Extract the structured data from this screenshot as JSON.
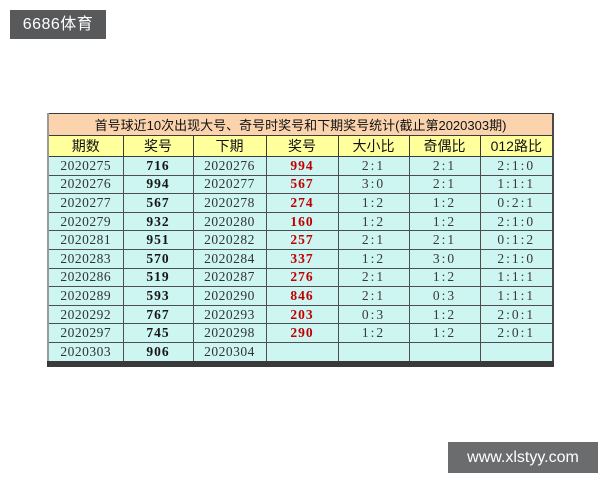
{
  "top_badge": {
    "text": "6686体育",
    "bg": "#58595b",
    "color": "#ffffff"
  },
  "watermark": {
    "text": "www.xlstyy.com",
    "bg": "#6b6c6e",
    "color": "#ffffff"
  },
  "table": {
    "title": "首号球近10次出现大号、奇号时奖号和下期奖号统计(截止第2020303期)",
    "title_bg": "#fbd4ae",
    "header_bg": "#ffff9c",
    "row_bg": "#cdf5f1",
    "highlight_color": "#c00000",
    "columns": [
      "期数",
      "奖号",
      "下期",
      "奖号",
      "大小比",
      "奇偶比",
      "012路比"
    ],
    "rows": [
      {
        "period": "2020275",
        "number": "716",
        "next_period": "2020276",
        "next_number": "994",
        "big_small": "2:1",
        "odd_even": "2:1",
        "route_012": "2:1:0"
      },
      {
        "period": "2020276",
        "number": "994",
        "next_period": "2020277",
        "next_number": "567",
        "big_small": "3:0",
        "odd_even": "2:1",
        "route_012": "1:1:1"
      },
      {
        "period": "2020277",
        "number": "567",
        "next_period": "2020278",
        "next_number": "274",
        "big_small": "1:2",
        "odd_even": "1:2",
        "route_012": "0:2:1"
      },
      {
        "period": "2020279",
        "number": "932",
        "next_period": "2020280",
        "next_number": "160",
        "big_small": "1:2",
        "odd_even": "1:2",
        "route_012": "2:1:0"
      },
      {
        "period": "2020281",
        "number": "951",
        "next_period": "2020282",
        "next_number": "257",
        "big_small": "2:1",
        "odd_even": "2:1",
        "route_012": "0:1:2"
      },
      {
        "period": "2020283",
        "number": "570",
        "next_period": "2020284",
        "next_number": "337",
        "big_small": "1:2",
        "odd_even": "3:0",
        "route_012": "2:1:0"
      },
      {
        "period": "2020286",
        "number": "519",
        "next_period": "2020287",
        "next_number": "276",
        "big_small": "2:1",
        "odd_even": "1:2",
        "route_012": "1:1:1"
      },
      {
        "period": "2020289",
        "number": "593",
        "next_period": "2020290",
        "next_number": "846",
        "big_small": "2:1",
        "odd_even": "0:3",
        "route_012": "1:1:1"
      },
      {
        "period": "2020292",
        "number": "767",
        "next_period": "2020293",
        "next_number": "203",
        "big_small": "0:3",
        "odd_even": "1:2",
        "route_012": "2:0:1"
      },
      {
        "period": "2020297",
        "number": "745",
        "next_period": "2020298",
        "next_number": "290",
        "big_small": "1:2",
        "odd_even": "1:2",
        "route_012": "2:0:1"
      },
      {
        "period": "2020303",
        "number": "906",
        "next_period": "2020304",
        "next_number": "",
        "big_small": "",
        "odd_even": "",
        "route_012": ""
      }
    ]
  }
}
